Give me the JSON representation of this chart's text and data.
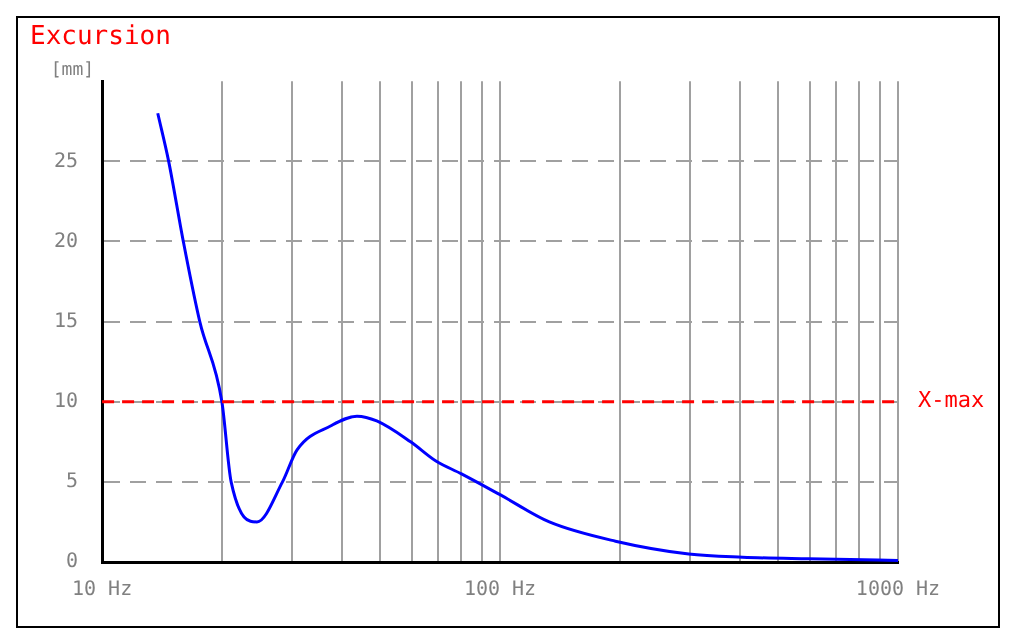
{
  "chart_data": {
    "type": "line",
    "title": "Excursion",
    "ylabel": "[mm]",
    "log": "x",
    "x": [
      13.8,
      14.7,
      16,
      17.6,
      20,
      21.1,
      24.5,
      28.4,
      30.9,
      37.6,
      43.7,
      49,
      59.6,
      69,
      80,
      100,
      133,
      195,
      298,
      407,
      596,
      1000
    ],
    "series": [
      {
        "color": "#0000ff",
        "values": [
          28,
          25,
          20,
          15,
          10,
          5,
          2.5,
          5,
          7,
          8.5,
          9.1,
          8.8,
          7.5,
          6.3,
          5.5,
          4.2,
          2.5,
          1.3,
          0.5,
          0.3,
          0.2,
          0.1
        ]
      }
    ],
    "xlim": [
      10,
      1000
    ],
    "xticks": [
      {
        "value": 10,
        "label": "10 Hz"
      },
      {
        "value": 20,
        "label": null
      },
      {
        "value": 30,
        "label": null
      },
      {
        "value": 40,
        "label": null
      },
      {
        "value": 50,
        "label": null
      },
      {
        "value": 60,
        "label": null
      },
      {
        "value": 70,
        "label": null
      },
      {
        "value": 80,
        "label": null
      },
      {
        "value": 90,
        "label": null
      },
      {
        "value": 100,
        "label": "100 Hz"
      },
      {
        "value": 200,
        "label": null
      },
      {
        "value": 300,
        "label": null
      },
      {
        "value": 400,
        "label": null
      },
      {
        "value": 500,
        "label": null
      },
      {
        "value": 600,
        "label": null
      },
      {
        "value": 700,
        "label": null
      },
      {
        "value": 800,
        "label": null
      },
      {
        "value": 900,
        "label": null
      },
      {
        "value": 1000,
        "label": "1000 Hz"
      }
    ],
    "ylim": [
      0,
      30
    ],
    "yticks": [
      0,
      5,
      10,
      15,
      20,
      25
    ],
    "ref_lines": [
      {
        "axis": "y",
        "value": 10,
        "label": "X-max",
        "color": "#ff0000",
        "line_style": "dashed"
      }
    ],
    "grid": true,
    "legend": false,
    "marker": "none",
    "line_style": "solid"
  }
}
